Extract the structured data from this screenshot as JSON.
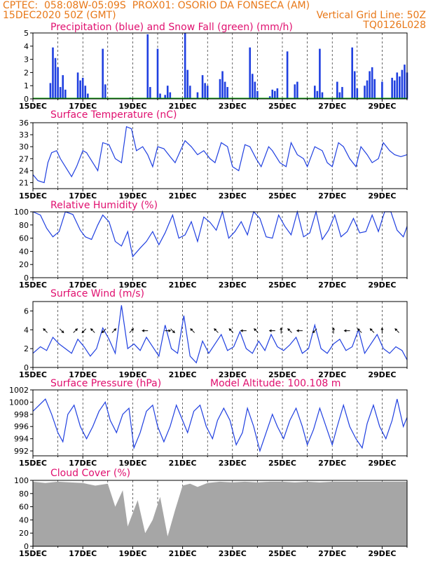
{
  "header": {
    "left_line1": "CPTEC:  058:08W-05:09S  PROX01: OSORIO DA FONSECA (AM)",
    "left_line2": "15DEC2020 50Z (GMT)",
    "right_line2": "Vertical Grid Line: 50Z",
    "right_line3": "TQ0126L028"
  },
  "colors": {
    "header": "#e87818",
    "panel_title": "#e0106f",
    "series_blue": "#1f3fe0",
    "snow_green": "#00a000",
    "cloud_gray": "#a6a6a6",
    "arrow": "#000000"
  },
  "x_axis": {
    "tick_labels": [
      "15DEC",
      "17DEC",
      "19DEC",
      "21DEC",
      "23DEC",
      "25DEC",
      "27DEC",
      "29DEC"
    ],
    "range_days": [
      0,
      15
    ]
  },
  "panels": {
    "precip": {
      "title": "Precipitation (blue) and Snow Fall (green) (mm/h)"
    },
    "temp": {
      "title": "Surface Temperature (nC)"
    },
    "rh": {
      "title": "Relative Humidity (%)"
    },
    "wind": {
      "title": "Surface Wind (m/s)"
    },
    "pressure": {
      "title": "Surface Pressure (hPa)",
      "extra": "Model Altitude: 100.108 m"
    },
    "cloud": {
      "title": "Cloud Cover (%)"
    }
  },
  "chart_data": [
    {
      "type": "bar",
      "title": "Precipitation (blue) and Snow Fall (green) (mm/h)",
      "ylim": [
        0,
        5
      ],
      "yticks": [
        0,
        1,
        2,
        3,
        4,
        5
      ],
      "series": [
        {
          "name": "Precipitation",
          "points": [
            [
              0.7,
              1.2
            ],
            [
              0.8,
              3.9
            ],
            [
              0.9,
              3.1
            ],
            [
              1.0,
              2.4
            ],
            [
              1.1,
              0.9
            ],
            [
              1.2,
              1.8
            ],
            [
              1.3,
              0.7
            ],
            [
              1.8,
              2.0
            ],
            [
              1.9,
              1.4
            ],
            [
              2.0,
              1.6
            ],
            [
              2.1,
              1.0
            ],
            [
              2.2,
              0.4
            ],
            [
              2.8,
              3.8
            ],
            [
              2.9,
              1.1
            ],
            [
              3.9,
              0.1
            ],
            [
              4.6,
              4.9
            ],
            [
              4.7,
              0.9
            ],
            [
              5.0,
              3.8
            ],
            [
              5.1,
              0.4
            ],
            [
              5.3,
              0.3
            ],
            [
              5.4,
              1.0
            ],
            [
              5.5,
              0.5
            ],
            [
              6.1,
              5.0
            ],
            [
              6.2,
              2.2
            ],
            [
              6.3,
              1.0
            ],
            [
              6.6,
              0.5
            ],
            [
              6.8,
              1.8
            ],
            [
              6.9,
              1.2
            ],
            [
              7.0,
              1.0
            ],
            [
              7.5,
              1.5
            ],
            [
              7.6,
              2.1
            ],
            [
              7.7,
              1.3
            ],
            [
              7.8,
              0.9
            ],
            [
              8.7,
              3.9
            ],
            [
              8.8,
              1.9
            ],
            [
              8.9,
              1.3
            ],
            [
              9.0,
              0.6
            ],
            [
              9.5,
              0.2
            ],
            [
              9.6,
              0.7
            ],
            [
              9.7,
              0.6
            ],
            [
              9.8,
              0.8
            ],
            [
              10.2,
              3.6
            ],
            [
              10.5,
              1.1
            ],
            [
              10.6,
              1.3
            ],
            [
              11.3,
              1.0
            ],
            [
              11.4,
              0.6
            ],
            [
              11.5,
              3.8
            ],
            [
              11.6,
              0.5
            ],
            [
              12.2,
              1.3
            ],
            [
              12.3,
              0.5
            ],
            [
              12.4,
              0.9
            ],
            [
              12.8,
              3.9
            ],
            [
              12.9,
              2.1
            ],
            [
              13.0,
              0.8
            ],
            [
              13.3,
              1.0
            ],
            [
              13.4,
              1.4
            ],
            [
              13.5,
              2.1
            ],
            [
              13.6,
              2.4
            ],
            [
              13.7,
              1.5
            ],
            [
              14.0,
              1.3
            ],
            [
              14.4,
              1.6
            ],
            [
              14.5,
              1.4
            ],
            [
              14.6,
              2.0
            ],
            [
              14.7,
              1.7
            ],
            [
              14.8,
              2.2
            ],
            [
              14.9,
              2.6
            ],
            [
              15.0,
              2.0
            ]
          ]
        },
        {
          "name": "Snow Fall",
          "points": [
            [
              0,
              0
            ],
            [
              15,
              0
            ]
          ]
        }
      ]
    },
    {
      "type": "line",
      "title": "Surface Temperature (nC)",
      "ylim": [
        19.5,
        36
      ],
      "yticks": [
        21,
        24,
        27,
        30,
        33,
        36
      ],
      "x": [
        0,
        0.2,
        0.45,
        0.6,
        0.75,
        0.95,
        1.1,
        1.35,
        1.55,
        1.75,
        2.0,
        2.15,
        2.4,
        2.6,
        2.8,
        3.05,
        3.3,
        3.55,
        3.75,
        3.95,
        4.15,
        4.4,
        4.6,
        4.8,
        5.0,
        5.25,
        5.5,
        5.7,
        5.95,
        6.1,
        6.35,
        6.6,
        6.85,
        7.1,
        7.3,
        7.55,
        7.8,
        8.0,
        8.25,
        8.5,
        8.7,
        8.95,
        9.15,
        9.45,
        9.6,
        9.9,
        10.15,
        10.35,
        10.6,
        10.85,
        11.0,
        11.3,
        11.6,
        11.8,
        12.0,
        12.25,
        12.45,
        12.7,
        12.95,
        13.15,
        13.4,
        13.6,
        13.85,
        14.05,
        14.3,
        14.5,
        14.75,
        15.0
      ],
      "y": [
        23,
        21.5,
        21,
        26,
        28.5,
        29,
        27,
        24.5,
        22.5,
        25,
        29,
        28.5,
        26,
        24,
        31,
        30.5,
        27,
        26,
        35,
        34.5,
        29,
        30,
        28,
        25,
        30,
        29.5,
        27.5,
        26,
        29.5,
        31.5,
        30,
        28,
        29,
        27,
        26,
        31,
        30,
        25,
        24,
        30.5,
        30,
        27,
        25,
        30,
        29,
        26,
        25,
        31,
        28,
        27,
        25,
        30,
        29,
        26,
        25,
        31,
        30,
        27,
        25,
        30,
        28,
        26,
        27,
        31,
        29,
        28,
        27.5,
        28
      ]
    },
    {
      "type": "line",
      "title": "Relative Humidity (%)",
      "ylim": [
        0,
        100
      ],
      "yticks": [
        0,
        20,
        40,
        60,
        80,
        100
      ],
      "x": [
        0,
        0.3,
        0.55,
        0.8,
        1.05,
        1.3,
        1.6,
        1.9,
        2.1,
        2.35,
        2.6,
        2.8,
        3.05,
        3.3,
        3.55,
        3.8,
        4.0,
        4.3,
        4.55,
        4.8,
        5.05,
        5.3,
        5.6,
        5.85,
        6.1,
        6.35,
        6.6,
        6.85,
        7.1,
        7.35,
        7.6,
        7.85,
        8.1,
        8.35,
        8.6,
        8.85,
        9.1,
        9.35,
        9.6,
        9.85,
        10.1,
        10.35,
        10.6,
        10.85,
        11.1,
        11.35,
        11.6,
        11.85,
        12.1,
        12.35,
        12.6,
        12.85,
        13.1,
        13.35,
        13.6,
        13.85,
        14.1,
        14.35,
        14.6,
        14.85,
        15.0
      ],
      "y": [
        100,
        95,
        75,
        62,
        70,
        100,
        96,
        72,
        62,
        58,
        80,
        95,
        85,
        55,
        48,
        70,
        32,
        45,
        55,
        70,
        50,
        68,
        95,
        60,
        65,
        85,
        55,
        92,
        84,
        72,
        100,
        60,
        70,
        85,
        65,
        100,
        90,
        62,
        60,
        95,
        78,
        65,
        100,
        62,
        68,
        100,
        58,
        72,
        95,
        62,
        70,
        90,
        68,
        70,
        95,
        70,
        100,
        100,
        72,
        62,
        78
      ]
    },
    {
      "type": "line",
      "title": "Surface Wind (m/s)",
      "ylim": [
        0,
        7
      ],
      "yticks": [
        0,
        2,
        4,
        6
      ],
      "x": [
        0,
        0.3,
        0.55,
        0.8,
        1.05,
        1.3,
        1.55,
        1.8,
        2.05,
        2.3,
        2.55,
        2.8,
        3.05,
        3.3,
        3.55,
        3.8,
        4.05,
        4.3,
        4.55,
        4.8,
        5.05,
        5.3,
        5.55,
        5.8,
        6.05,
        6.3,
        6.55,
        6.8,
        7.05,
        7.3,
        7.55,
        7.8,
        8.05,
        8.3,
        8.55,
        8.8,
        9.05,
        9.3,
        9.55,
        9.8,
        10.05,
        10.3,
        10.55,
        10.8,
        11.05,
        11.3,
        11.55,
        11.8,
        12.05,
        12.3,
        12.55,
        12.8,
        13.05,
        13.3,
        13.55,
        13.8,
        14.05,
        14.3,
        14.55,
        14.8,
        15.0
      ],
      "y": [
        1.5,
        2.2,
        1.8,
        3.2,
        2.5,
        2.0,
        1.5,
        3.0,
        2.2,
        1.2,
        2.0,
        4.2,
        3.0,
        1.5,
        6.6,
        2.0,
        2.5,
        1.8,
        3.2,
        2.2,
        1.2,
        4.5,
        2.0,
        1.5,
        5.5,
        1.2,
        0.5,
        2.8,
        1.5,
        2.5,
        3.5,
        1.8,
        2.2,
        3.8,
        2.0,
        1.5,
        2.8,
        1.8,
        3.5,
        2.2,
        1.8,
        2.4,
        3.2,
        1.5,
        2.0,
        4.5,
        2.0,
        1.5,
        2.5,
        3.0,
        1.8,
        2.2,
        4.0,
        1.5,
        2.5,
        3.5,
        2.0,
        1.5,
        2.2,
        1.8,
        0.8
      ],
      "arrows": [
        {
          "x": 0.5,
          "dir": "NW"
        },
        {
          "x": 1.15,
          "dir": "SE"
        },
        {
          "x": 1.7,
          "dir": "NE"
        },
        {
          "x": 2.05,
          "dir": "SW"
        },
        {
          "x": 2.4,
          "dir": "NW"
        },
        {
          "x": 2.85,
          "dir": "SW"
        },
        {
          "x": 3.25,
          "dir": "NE"
        },
        {
          "x": 3.95,
          "dir": "NE"
        },
        {
          "x": 4.5,
          "dir": "W"
        },
        {
          "x": 5.4,
          "dir": "E"
        },
        {
          "x": 5.6,
          "dir": "SE"
        },
        {
          "x": 6.4,
          "dir": "NW"
        },
        {
          "x": 7.35,
          "dir": "NW"
        },
        {
          "x": 7.95,
          "dir": "NW"
        },
        {
          "x": 8.45,
          "dir": "W"
        },
        {
          "x": 8.95,
          "dir": "NW"
        },
        {
          "x": 9.6,
          "dir": "W"
        },
        {
          "x": 9.95,
          "dir": "N"
        },
        {
          "x": 10.3,
          "dir": "NW"
        },
        {
          "x": 10.7,
          "dir": "W"
        },
        {
          "x": 11.3,
          "dir": "SW"
        },
        {
          "x": 12.05,
          "dir": "N"
        },
        {
          "x": 12.6,
          "dir": "W"
        },
        {
          "x": 13.1,
          "dir": "NW"
        },
        {
          "x": 13.6,
          "dir": "NW"
        },
        {
          "x": 14.0,
          "dir": "N"
        },
        {
          "x": 14.6,
          "dir": "NW"
        }
      ]
    },
    {
      "type": "line",
      "title": "Surface Pressure (hPa)",
      "ylim": [
        991.2,
        1002
      ],
      "yticks": [
        992,
        994,
        996,
        998,
        1000,
        1002
      ],
      "x": [
        0,
        0.25,
        0.5,
        0.75,
        1.0,
        1.2,
        1.4,
        1.65,
        1.9,
        2.15,
        2.4,
        2.65,
        2.9,
        3.1,
        3.35,
        3.6,
        3.85,
        4.05,
        4.3,
        4.55,
        4.8,
        5.0,
        5.25,
        5.5,
        5.75,
        6.0,
        6.2,
        6.45,
        6.7,
        6.95,
        7.2,
        7.4,
        7.65,
        7.9,
        8.15,
        8.4,
        8.6,
        8.85,
        9.1,
        9.35,
        9.6,
        9.8,
        10.05,
        10.3,
        10.55,
        10.8,
        11.0,
        11.25,
        11.5,
        11.75,
        12.0,
        12.2,
        12.45,
        12.7,
        12.95,
        13.2,
        13.4,
        13.65,
        13.9,
        14.15,
        14.4,
        14.6,
        14.85,
        15.0
      ],
      "y": [
        998.5,
        999.5,
        1000.5,
        998,
        995,
        993.5,
        998,
        999.5,
        996,
        994,
        996,
        998.5,
        1000,
        997,
        995,
        998,
        999,
        992.5,
        995,
        998.5,
        999.5,
        996,
        993.5,
        996,
        999.5,
        997,
        995,
        998.5,
        999.5,
        996,
        994,
        997,
        999,
        997,
        993,
        995,
        999,
        996,
        992,
        995,
        998,
        996,
        994,
        997,
        999,
        996,
        993,
        995.5,
        999,
        996,
        993,
        996,
        999.5,
        996,
        994,
        992.5,
        996.5,
        999.5,
        996,
        994,
        997,
        1000.5,
        996,
        997.5
      ]
    },
    {
      "type": "area",
      "title": "Cloud Cover (%)",
      "ylim": [
        0,
        100
      ],
      "yticks": [
        0,
        20,
        40,
        60,
        80,
        100
      ],
      "x": [
        0,
        0.5,
        1.0,
        1.5,
        2.0,
        2.5,
        3.0,
        3.3,
        3.6,
        3.8,
        4.0,
        4.2,
        4.5,
        4.8,
        5.1,
        5.4,
        5.7,
        6.0,
        6.3,
        6.6,
        7.0,
        7.5,
        8.0,
        8.5,
        9.0,
        9.5,
        10.0,
        10.5,
        11.0,
        11.5,
        12.0,
        12.5,
        13.0,
        13.5,
        14.0,
        14.5,
        15.0
      ],
      "y": [
        98,
        96,
        98,
        97,
        96,
        92,
        95,
        60,
        85,
        30,
        50,
        70,
        20,
        40,
        75,
        15,
        55,
        92,
        95,
        90,
        96,
        98,
        97,
        98,
        97,
        98,
        98,
        97,
        98,
        97,
        98,
        98,
        98,
        98,
        98,
        98,
        98
      ]
    }
  ]
}
